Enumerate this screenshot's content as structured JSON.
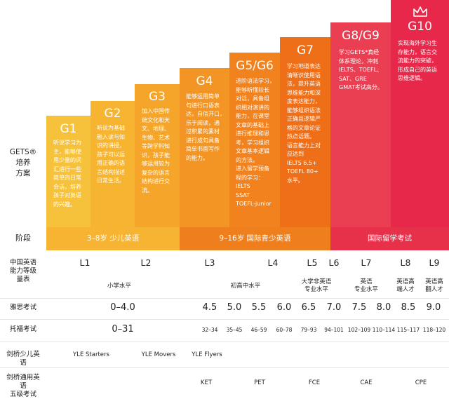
{
  "colors": {
    "g1": "#f7c23b",
    "g2": "#f7b431",
    "g3": "#f5a62a",
    "g4": "#f29524",
    "g5": "#f1821e",
    "g7": "#ee6f18",
    "g8": "#ea3f52",
    "g10": "#e7284a",
    "band_yellow": "#f6b432",
    "band_orange": "#ef7f1c",
    "band_red": "#e73049"
  },
  "left_title": "GETS®\n培养\n方案",
  "steps": [
    {
      "grade": "G1",
      "desc": "听说学习为\n主，能够使\n用少量的词\n汇进行一些\n简单的日常\n会话，培养\n孩子对英语\n的兴趣。"
    },
    {
      "grade": "G2",
      "desc": "听说为基础\n融入读与知\n识的讲授，\n孩子可以运\n用正确的语\n言结构描述\n日常生活。"
    },
    {
      "grade": "G3",
      "desc": "加入中国传\n统文化和天\n文、地理、\n生物、艺术\n等跨学科知\n识，孩子能\n够运用较为\n复杂的语言\n结构进行交\n流。"
    },
    {
      "grade": "G4",
      "desc": "能够运用简单\n句进行口语表\n达，自信开口，\n乐于阅读，通\n过积累的素材\n进行成句具备\n简单书面写作\n的能力。"
    },
    {
      "grade": "G5/G6",
      "desc": "进阶语法学习，\n能够听懂较长\n对话，具备组\n织相对演讲的\n能力，在课堂\n文章的基础上\n进行推理和思\n考，学习组织\n文章基本逻辑\n的方法。\n进入留学预备\n程的学习：\nIELTS\nSSAT\nTOEFL-junior"
    },
    {
      "grade": "G7",
      "desc": "学习地道表达\n清晰识使用语\n法，提升英语\n思维能力和深\n度表达能力，\n能够组织语法\n正确且逻辑严\n格的文章论证\n热点话题。\n语言能力上对\n应达到\nIELTS 6.5+\nTOEFL 80+\n水平。"
    },
    {
      "grade": "G8/G9",
      "desc": "学习GETS*真经\n体系理论，冲刺\nIELTS、TOEFL、\nSAT、GRE\nGMAT考试高分。"
    },
    {
      "grade": "G10",
      "desc": "实现海外学习生\n存能力，语言交\n流能力的突破，\n形成自己的英语\n思维逻辑。"
    }
  ],
  "stage": {
    "label": "阶段",
    "bands": [
      "3–8岁 少儿英语",
      "9–16岁 国际青少英语",
      "国际留学考试"
    ]
  },
  "levels_row": {
    "label": "中国英语\n能力等级\n量表",
    "levels": [
      "L1",
      "L2",
      "L3",
      "L4",
      "L5",
      "L6",
      "L7",
      "L8",
      "L9"
    ],
    "descs": [
      "小学水平",
      "初高中水平",
      "大学非英语\n专业水平",
      "英语\n专业水平",
      "英语高\n端人才",
      "英语高\n翻人才"
    ]
  },
  "ielts_row": {
    "label": "雅思考试",
    "scores": [
      "0–4.0",
      "4.5",
      "5.0",
      "5.5",
      "6.0",
      "6.5",
      "7.0",
      "7.5",
      "8.0",
      "8.5",
      "9.0"
    ]
  },
  "toefl_row": {
    "label": "托福考试",
    "scores": [
      "0–31",
      "32–34",
      "35–45",
      "46–59",
      "60–78",
      "79–93",
      "94–101",
      "102–109",
      "110–114",
      "115–117",
      "118–120"
    ]
  },
  "yle_row": {
    "label": "剑桥少儿英语",
    "exams": [
      "YLE Starters",
      "YLE Movers",
      "YLE Flyers"
    ]
  },
  "main_row": {
    "label": "剑桥通用英语\n五级考试",
    "exams": [
      "KET",
      "PET",
      "FCE",
      "CAE",
      "CPE"
    ]
  }
}
